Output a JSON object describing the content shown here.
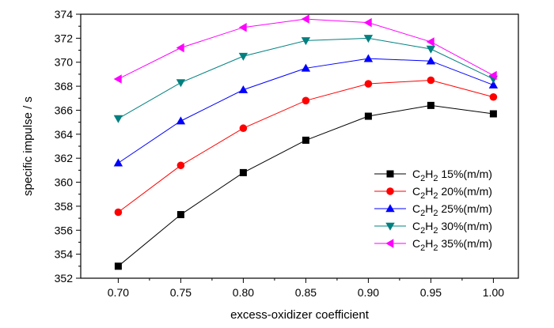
{
  "chart_data": {
    "type": "line",
    "xlabel": "excess-oxidizer coefficient",
    "ylabel": "specific impulse / s",
    "x": [
      0.7,
      0.75,
      0.8,
      0.85,
      0.9,
      0.95,
      1.0
    ],
    "x_tick_labels": [
      "0.70",
      "0.75",
      "0.80",
      "0.85",
      "0.90",
      "0.95",
      "1.00"
    ],
    "xlim": [
      0.67,
      1.02
    ],
    "ylim": [
      352,
      374
    ],
    "y_ticks": [
      352,
      354,
      356,
      358,
      360,
      362,
      364,
      366,
      368,
      370,
      372,
      374
    ],
    "grid": false,
    "legend_position": "right",
    "series": [
      {
        "legend_main": "C",
        "legend_sub1": "2",
        "legend_mid": "H",
        "legend_sub2": "2",
        "legend_tail": " 15%(m/m)",
        "color": "#000000",
        "marker": "square",
        "values": [
          353.0,
          357.3,
          360.8,
          363.5,
          365.5,
          366.4,
          365.7
        ]
      },
      {
        "legend_main": "C",
        "legend_sub1": "2",
        "legend_mid": "H",
        "legend_sub2": "2",
        "legend_tail": " 20%(m/m)",
        "color": "#ff0000",
        "marker": "circle",
        "values": [
          357.5,
          361.4,
          364.5,
          366.8,
          368.2,
          368.5,
          367.1
        ]
      },
      {
        "legend_main": "C",
        "legend_sub1": "2",
        "legend_mid": "H",
        "legend_sub2": "2",
        "legend_tail": " 25%(m/m)",
        "color": "#0000ff",
        "marker": "triangle-up",
        "values": [
          361.6,
          365.1,
          367.7,
          369.5,
          370.3,
          370.1,
          368.1
        ]
      },
      {
        "legend_main": "C",
        "legend_sub1": "2",
        "legend_mid": "H",
        "legend_sub2": "2",
        "legend_tail": " 30%(m/m)",
        "color": "#008080",
        "marker": "triangle-down",
        "values": [
          365.3,
          368.3,
          370.5,
          371.8,
          372.0,
          371.1,
          368.6
        ]
      },
      {
        "legend_main": "C",
        "legend_sub1": "2",
        "legend_mid": "H",
        "legend_sub2": "2",
        "legend_tail": " 35%(m/m)",
        "color": "#ff00ff",
        "marker": "triangle-left",
        "values": [
          368.6,
          371.2,
          372.9,
          373.6,
          373.3,
          371.7,
          368.9
        ]
      }
    ]
  }
}
